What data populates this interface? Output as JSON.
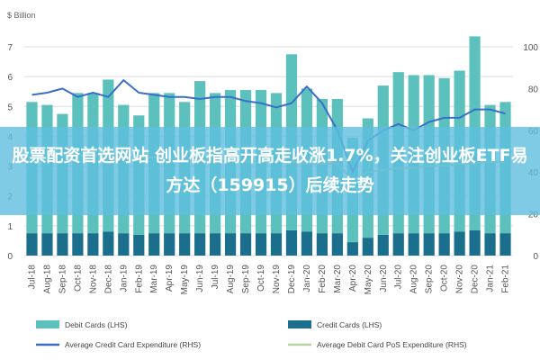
{
  "banner": {
    "headline": "股票配资首选网站 创业板指高开高走收涨1.7%，关注创业板ETF易方达（159915）后续走势"
  },
  "chart_data": {
    "type": "bar",
    "unit_left": "$ Billion",
    "categories": [
      "Jul-18",
      "Aug-18",
      "Sep-18",
      "Oct-18",
      "Nov-18",
      "Dec-18",
      "Jan-19",
      "Feb-19",
      "Mar-19",
      "Apr-19",
      "May-19",
      "Jun-19",
      "Jul-19",
      "Aug-19",
      "Sep-19",
      "Oct-19",
      "Nov-19",
      "Dec-19",
      "Jan-20",
      "Feb-20",
      "Mar-20",
      "Apr-20",
      "May-20",
      "Jun-20",
      "Jul-20",
      "Aug-20",
      "Sep-20",
      "Oct-20",
      "Nov-20",
      "Dec-20",
      "Jan-21",
      "Feb-21"
    ],
    "y_left": {
      "min": 0,
      "max": 7,
      "ticks": [
        0,
        1,
        2,
        3,
        4,
        5,
        6,
        7
      ]
    },
    "y_right": {
      "min": 0,
      "max": 100,
      "ticks": [
        0,
        20,
        40,
        60,
        80,
        100
      ]
    },
    "grid": true,
    "legend_position": "bottom",
    "series": [
      {
        "name": "Debit Cards (LHS)",
        "kind": "bar",
        "stack": "cards",
        "color": "#5cc0bd",
        "values": [
          4.4,
          4.3,
          4.0,
          4.7,
          4.7,
          5.1,
          4.3,
          4.0,
          4.7,
          4.7,
          4.4,
          5.1,
          4.7,
          4.8,
          4.8,
          4.8,
          4.7,
          5.9,
          4.8,
          4.5,
          4.5,
          3.5,
          4.0,
          5.0,
          5.4,
          5.3,
          5.3,
          5.2,
          5.4,
          6.5,
          4.3,
          4.4
        ]
      },
      {
        "name": "Credit Cards (LHS)",
        "kind": "bar",
        "stack": "cards",
        "color": "#1b6f8c",
        "values": [
          0.75,
          0.75,
          0.75,
          0.75,
          0.75,
          0.8,
          0.75,
          0.7,
          0.75,
          0.75,
          0.75,
          0.75,
          0.75,
          0.75,
          0.75,
          0.75,
          0.75,
          0.85,
          0.8,
          0.75,
          0.75,
          0.45,
          0.6,
          0.7,
          0.75,
          0.75,
          0.75,
          0.75,
          0.8,
          0.85,
          0.75,
          0.75
        ]
      },
      {
        "name": "Average Credit Card Expenditure (RHS)",
        "kind": "line",
        "axis": "right",
        "color": "#3a6fc8",
        "values": [
          77,
          78,
          80,
          76,
          78,
          76,
          84,
          78,
          77,
          76,
          76,
          75,
          76,
          76,
          74,
          73,
          71,
          73,
          81,
          73,
          60,
          40,
          55,
          60,
          63,
          60,
          64,
          66,
          66,
          70,
          70,
          68
        ]
      },
      {
        "name": "Average Debit Card PoS Expenditure (RHS)",
        "kind": "line",
        "axis": "right",
        "color": "#b6d3a2",
        "values": [
          50,
          49,
          49,
          48,
          48,
          48,
          47,
          47,
          47,
          47,
          46,
          46,
          46,
          45,
          45,
          45,
          45,
          45,
          44,
          44,
          44,
          36,
          40,
          41,
          42,
          42,
          43,
          43,
          44,
          44,
          45,
          45
        ]
      }
    ]
  }
}
